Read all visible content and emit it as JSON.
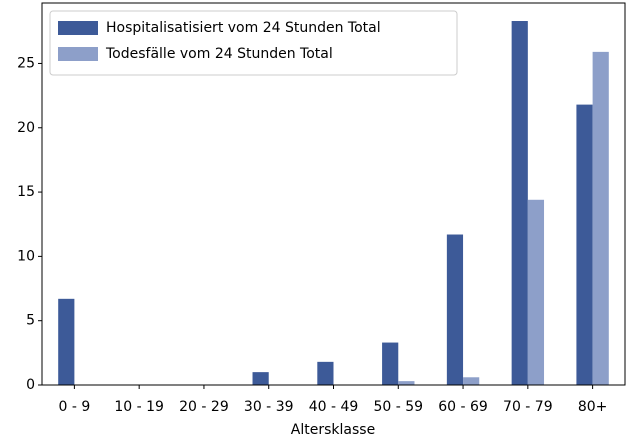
{
  "chart_data": {
    "type": "bar",
    "categories": [
      "0 - 9",
      "10 - 19",
      "20 - 29",
      "30 - 39",
      "40 - 49",
      "50 - 59",
      "60 - 69",
      "70 - 79",
      "80+"
    ],
    "series": [
      {
        "name": "Hospitalisatisiert vom 24 Stunden Total",
        "color": "#3d5a98",
        "values": [
          6.7,
          0,
          0,
          1.0,
          1.8,
          3.3,
          11.7,
          28.3,
          21.8
        ]
      },
      {
        "name": "Todesfälle vom 24 Stunden Total",
        "color": "#8d9fc9",
        "values": [
          0,
          0,
          0,
          0,
          0,
          0.3,
          0.6,
          14.4,
          25.9
        ]
      }
    ],
    "x_label": "Altersklasse",
    "ylim": [
      0,
      29.7
    ],
    "yticks": [
      0,
      5,
      10,
      15,
      20,
      25
    ],
    "legend": "upper left"
  }
}
